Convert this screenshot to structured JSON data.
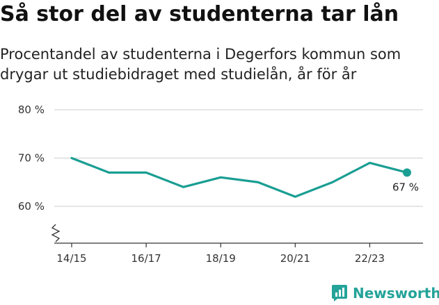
{
  "title": "Så stor del av studenterna tar lån",
  "subtitle": "Procentandel av studenterna i Degerfors kommun som drygar ut studiebidraget med studielån, år för år",
  "brand": {
    "name": "Newsworthy",
    "icon": "newsworthy-logo-icon",
    "color": "#24a399"
  },
  "chart_data": {
    "type": "line",
    "title": "Så stor del av studenterna tar lån",
    "subtitle": "Procentandel av studenterna i Degerfors kommun som drygar ut studiebidraget med studielån, år för år",
    "x": [
      "14/15",
      "15/16",
      "16/17",
      "17/18",
      "18/19",
      "19/20",
      "20/21",
      "21/22",
      "22/23",
      "23/24"
    ],
    "x_tick_labels": [
      "14/15",
      "16/17",
      "18/19",
      "20/21",
      "22/23"
    ],
    "series": [
      {
        "values": [
          70,
          67,
          67,
          64,
          66,
          65,
          62,
          65,
          69,
          67
        ],
        "color": "#1a9e93"
      }
    ],
    "y_ticks": [
      60,
      70,
      80
    ],
    "y_tick_labels": [
      "60 %",
      "70 %",
      "80 %"
    ],
    "ylim": [
      60,
      80
    ],
    "axis_break": true,
    "grid": true,
    "end_label": "67 %",
    "xlabel": "",
    "ylabel": ""
  }
}
